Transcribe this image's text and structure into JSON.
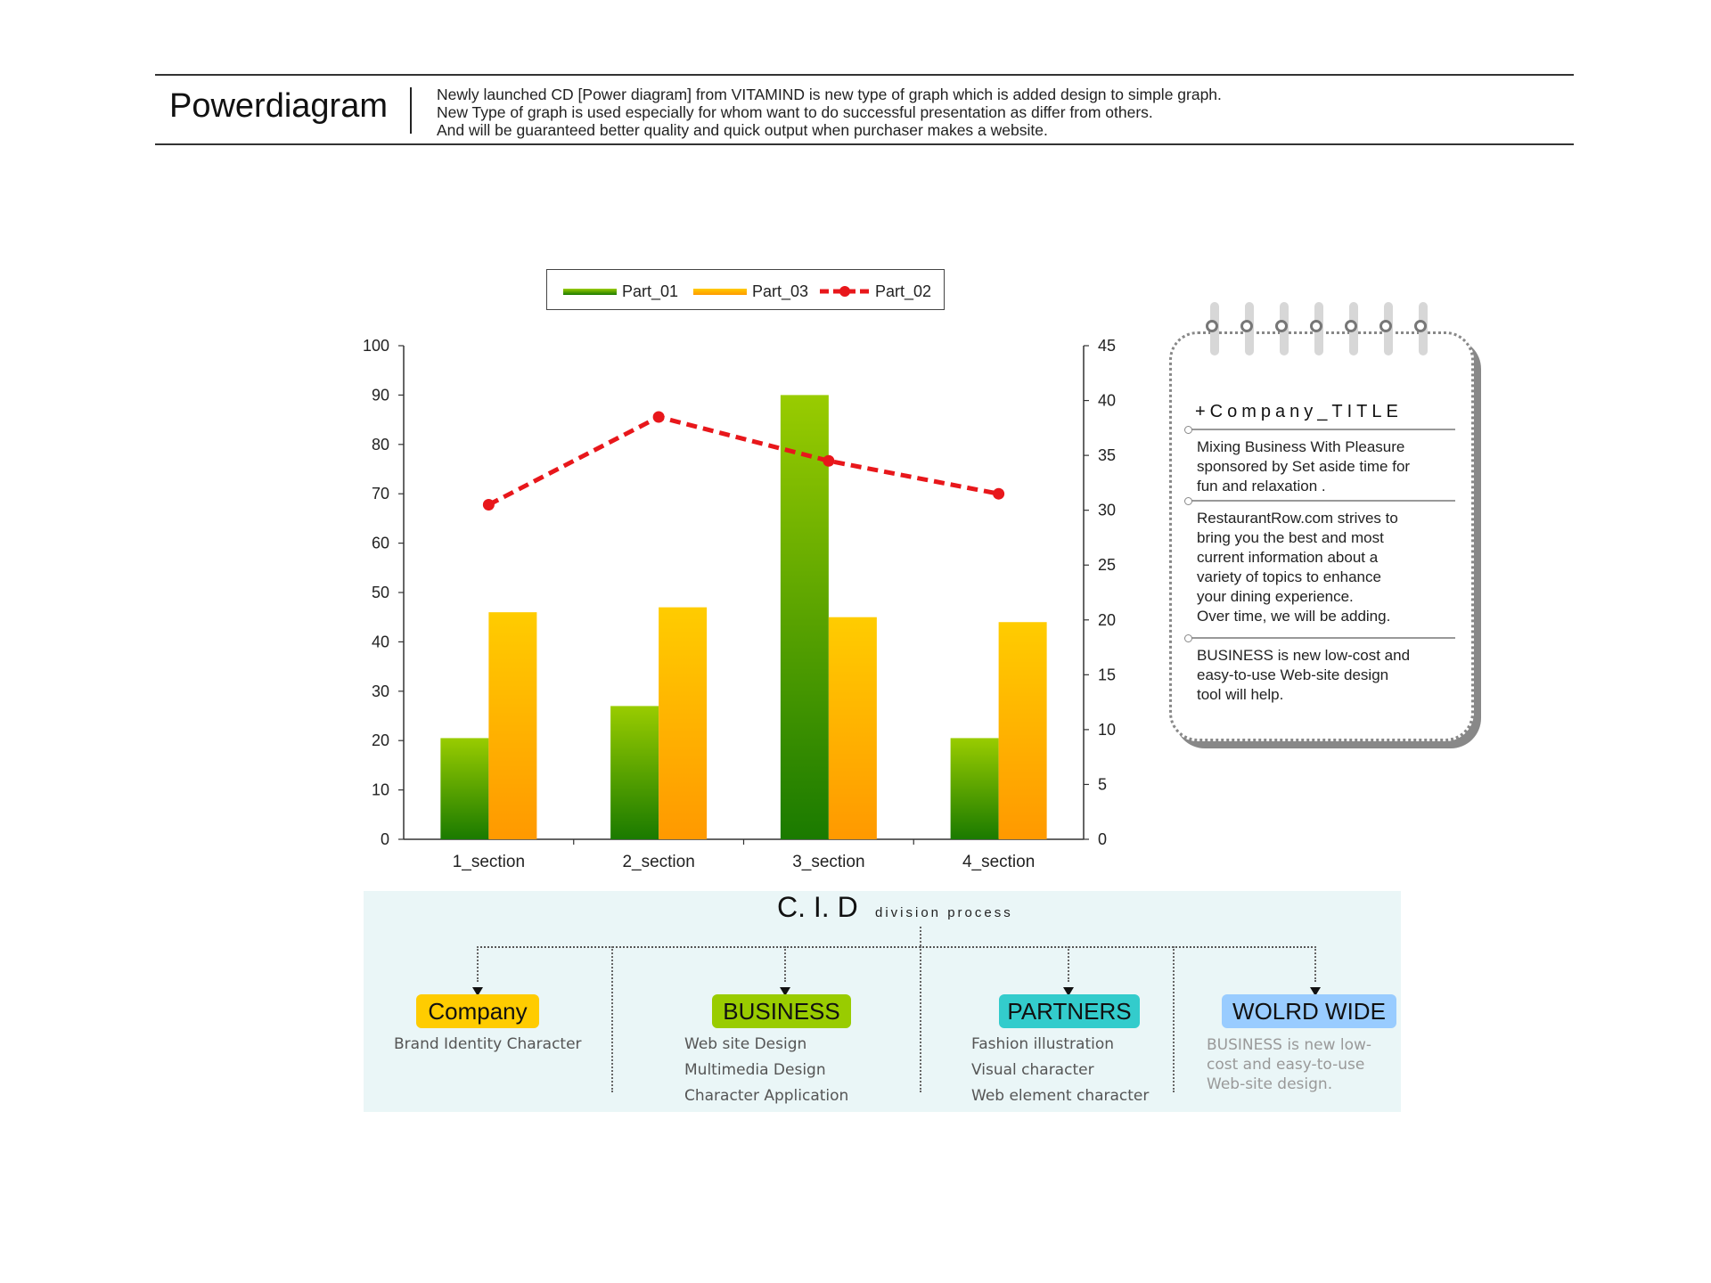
{
  "header": {
    "title": "Powerdiagram",
    "desc_lines": [
      "Newly launched CD [Power diagram] from VITAMIND is new type of graph which is added design to simple graph.",
      "New Type of graph is used especially for whom want to do successful presentation as differ from others.",
      "And will be guaranteed better quality and quick output when purchaser makes a website."
    ]
  },
  "chart_data": {
    "type": "bar",
    "categories": [
      "1_section",
      "2_section",
      "3_section",
      "4_section"
    ],
    "series": [
      {
        "name": "Part_01",
        "type": "bar",
        "axis": "left",
        "values": [
          20.5,
          27,
          90,
          20.5
        ],
        "color_top": "#99cc00",
        "color_bottom": "#1a7a00"
      },
      {
        "name": "Part_03",
        "type": "bar",
        "axis": "left",
        "values": [
          46,
          47,
          45,
          44
        ],
        "color_top": "#ffcc00",
        "color_bottom": "#ff9900"
      },
      {
        "name": "Part_02",
        "type": "line",
        "axis": "right",
        "values": [
          30.5,
          38.5,
          34.5,
          31.5
        ],
        "color": "#e8171b"
      }
    ],
    "yleft": {
      "min": 0,
      "max": 100,
      "ticks": [
        0,
        10,
        20,
        30,
        40,
        50,
        60,
        70,
        80,
        90,
        100
      ]
    },
    "yright": {
      "min": 0,
      "max": 45,
      "ticks": [
        0,
        5,
        10,
        15,
        20,
        25,
        30,
        35,
        40,
        45
      ]
    },
    "legend": {
      "placement": "top",
      "order": [
        "Part_01",
        "Part_03",
        "Part_02"
      ]
    },
    "grid": false
  },
  "notebook": {
    "title": "+Company_TITLE",
    "para1": [
      "Mixing Business With Pleasure",
      "sponsored by Set aside time for",
      "fun and relaxation ."
    ],
    "para2": [
      "RestaurantRow.com strives to",
      "bring you the best and most",
      "current information about a",
      "variety of topics to enhance",
      "your dining experience.",
      "Over time, we will be adding."
    ],
    "para3": [
      "BUSINESS is new low-cost and",
      "easy-to-use Web-site design",
      "tool will help."
    ]
  },
  "cid": {
    "title": "C. I. D",
    "subtitle": "division process",
    "columns": [
      {
        "badge": "Company",
        "color": "#ffcc00",
        "items": [
          "Brand Identity Character"
        ]
      },
      {
        "badge": "BUSINESS",
        "color": "#99cc00",
        "items": [
          "Web site Design",
          "Multimedia Design",
          "Character Application"
        ]
      },
      {
        "badge": "PARTNERS",
        "color": "#33cccc",
        "items": [
          "Fashion illustration",
          "Visual character",
          "Web element character"
        ]
      },
      {
        "badge": "WOLRD WIDE",
        "color": "#99ccff",
        "items": [
          "BUSINESS is new low-",
          "cost and easy-to-use",
          "Web-site design."
        ]
      }
    ]
  }
}
